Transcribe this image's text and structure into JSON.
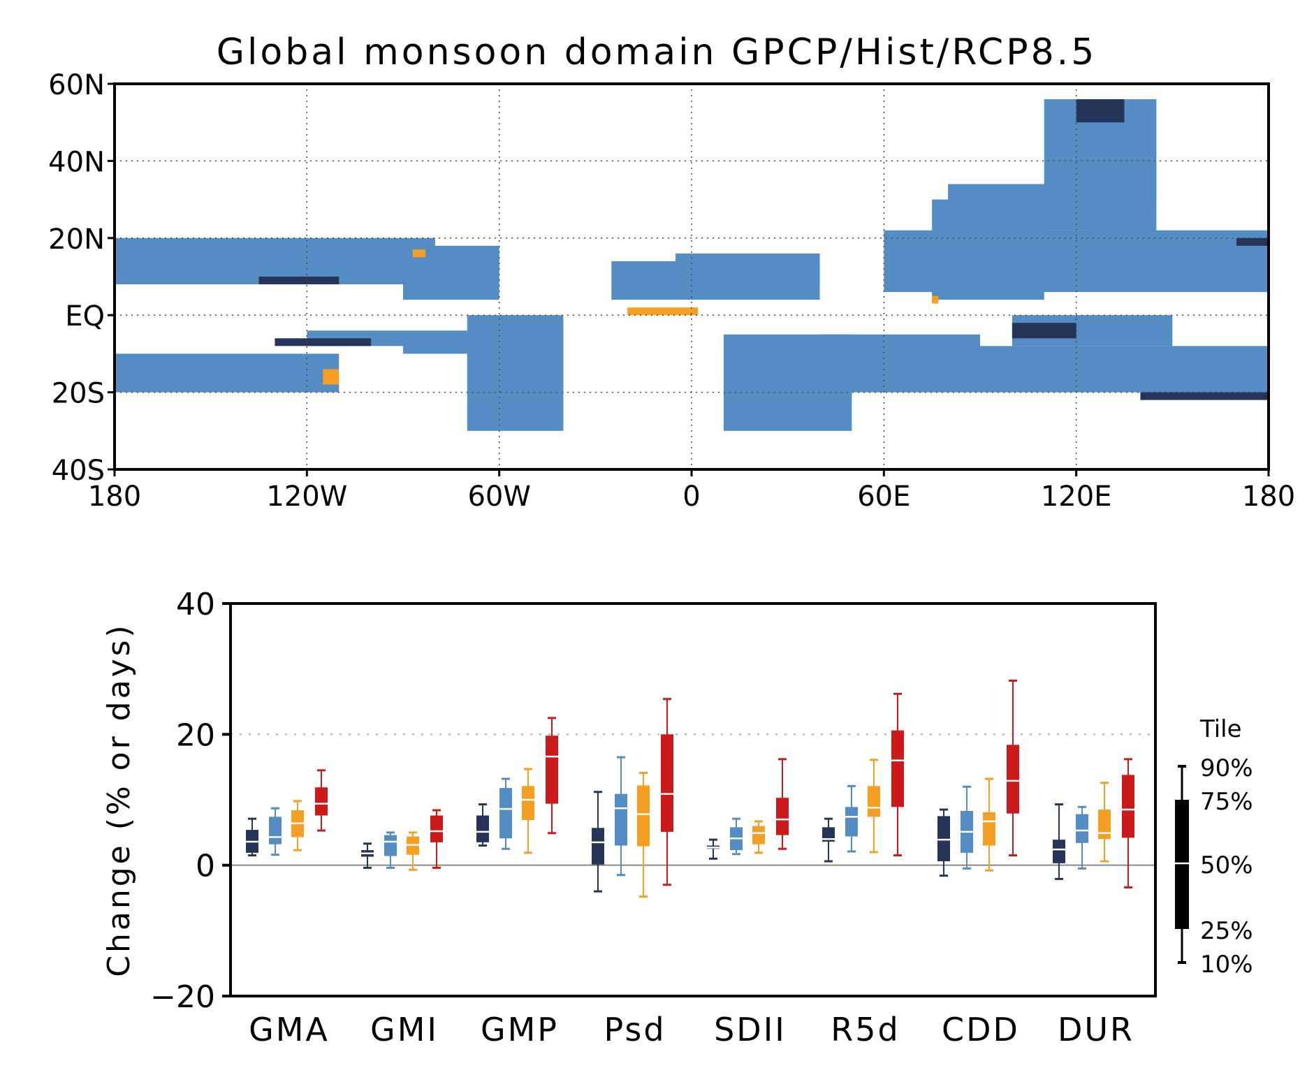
{
  "colors": {
    "navy": "#263459",
    "blue": "#548dc4",
    "orange": "#f5a024",
    "red": "#cc1a1a",
    "land": "#b0b0b0"
  },
  "chart_data": [
    {
      "type": "map",
      "title": "Global monsoon domain GPCP/Hist/RCP8.5",
      "xlim": [
        -180,
        180
      ],
      "ylim": [
        -40,
        60
      ],
      "xticks": [
        {
          "v": -180,
          "label": "180"
        },
        {
          "v": -120,
          "label": "120W"
        },
        {
          "v": -60,
          "label": "60W"
        },
        {
          "v": 0,
          "label": "0"
        },
        {
          "v": 60,
          "label": "60E"
        },
        {
          "v": 120,
          "label": "120E"
        },
        {
          "v": 180,
          "label": "180"
        }
      ],
      "yticks": [
        {
          "v": 60,
          "label": "60N"
        },
        {
          "v": 40,
          "label": "40N"
        },
        {
          "v": 20,
          "label": "20N"
        },
        {
          "v": 0,
          "label": "EQ"
        },
        {
          "v": -20,
          "label": "20S"
        },
        {
          "v": -40,
          "label": "40S"
        }
      ],
      "grid": "dotted",
      "regions_blue": [
        [
          -180,
          8,
          -80,
          20
        ],
        [
          -140,
          10,
          -60,
          16
        ],
        [
          -90,
          4,
          -60,
          18
        ],
        [
          -25,
          4,
          40,
          14
        ],
        [
          -5,
          8,
          40,
          16
        ],
        [
          60,
          6,
          180,
          22
        ],
        [
          75,
          4,
          110,
          30
        ],
        [
          80,
          22,
          130,
          34
        ],
        [
          110,
          30,
          145,
          56
        ],
        [
          125,
          20,
          145,
          40
        ],
        [
          -180,
          -20,
          -110,
          -10
        ],
        [
          -70,
          -30,
          -40,
          0
        ],
        [
          -90,
          -10,
          -40,
          -5
        ],
        [
          -120,
          -8,
          -70,
          -4
        ],
        [
          10,
          -30,
          50,
          -5
        ],
        [
          40,
          -20,
          90,
          -5
        ],
        [
          90,
          -20,
          180,
          -8
        ],
        [
          100,
          -8,
          150,
          0
        ]
      ],
      "regions_navy": [
        [
          -135,
          8,
          -110,
          10
        ],
        [
          -130,
          -8,
          -100,
          -6
        ],
        [
          100,
          -6,
          120,
          -2
        ],
        [
          120,
          50,
          135,
          56
        ],
        [
          170,
          18,
          180,
          20
        ],
        [
          140,
          -22,
          180,
          -20
        ]
      ],
      "regions_orange": [
        [
          -20,
          0,
          2,
          2
        ],
        [
          -115,
          -18,
          -110,
          -14
        ],
        [
          -87,
          15,
          -83,
          17
        ],
        [
          75,
          3,
          77,
          5
        ]
      ]
    },
    {
      "type": "box",
      "ylabel": "Change (% or days)",
      "ylim": [
        -20,
        40
      ],
      "yticks": [
        -20,
        0,
        20,
        40
      ],
      "ytick_labels": [
        "−20",
        "0",
        "20",
        "40"
      ],
      "categories": [
        "GMA",
        "GMI",
        "GMP",
        "Psd",
        "SDII",
        "R5d",
        "CDD",
        "DUR"
      ],
      "series_colors": [
        "#263459",
        "#548dc4",
        "#f5a024",
        "#cc1a1a"
      ],
      "boxes": [
        [
          [
            1.5,
            1.9,
            3.6,
            5.4,
            7.1
          ],
          [
            1.6,
            3.2,
            4.3,
            7.4,
            8.7
          ],
          [
            2.3,
            4.3,
            6.4,
            8.4,
            9.8
          ],
          [
            5.3,
            7.6,
            9.4,
            11.9,
            14.5
          ]
        ],
        [
          [
            -0.4,
            1.3,
            1.8,
            2.3,
            3.3
          ],
          [
            -0.4,
            1.4,
            3.6,
            4.6,
            5.0
          ],
          [
            -0.7,
            1.6,
            3.1,
            4.4,
            5.0
          ],
          [
            -0.4,
            3.5,
            5.2,
            7.6,
            8.4
          ]
        ],
        [
          [
            3.0,
            3.5,
            5.1,
            7.6,
            9.3
          ],
          [
            2.5,
            4.1,
            8.6,
            11.8,
            13.2
          ],
          [
            1.9,
            6.9,
            10.0,
            12.1,
            14.7
          ],
          [
            4.9,
            9.4,
            16.6,
            19.8,
            22.5
          ]
        ],
        [
          [
            -4.0,
            0.1,
            3.5,
            5.7,
            11.2
          ],
          [
            -1.5,
            3.0,
            8.7,
            10.9,
            16.5
          ],
          [
            -4.8,
            2.9,
            7.8,
            12.2,
            14.1
          ],
          [
            -3.0,
            5.1,
            10.9,
            20.0,
            25.4
          ]
        ],
        [
          [
            1.0,
            2.5,
            2.7,
            3.0,
            3.9
          ],
          [
            1.7,
            2.3,
            4.1,
            5.8,
            7.1
          ],
          [
            1.9,
            3.2,
            4.9,
            6.0,
            6.7
          ],
          [
            2.5,
            4.6,
            7.0,
            10.3,
            16.2
          ]
        ],
        [
          [
            0.6,
            3.6,
            4.0,
            5.8,
            7.1
          ],
          [
            2.1,
            4.4,
            7.4,
            8.9,
            12.1
          ],
          [
            2.0,
            7.4,
            8.8,
            12.1,
            16.1
          ],
          [
            1.5,
            8.9,
            16.0,
            20.6,
            26.2
          ]
        ],
        [
          [
            -1.6,
            0.6,
            3.9,
            7.5,
            8.5
          ],
          [
            -0.5,
            1.9,
            5.1,
            8.3,
            12.0
          ],
          [
            -0.8,
            3.0,
            6.7,
            8.1,
            13.2
          ],
          [
            1.5,
            7.9,
            12.9,
            18.4,
            28.2
          ]
        ],
        [
          [
            -2.1,
            0.3,
            2.4,
            3.9,
            9.3
          ],
          [
            -0.5,
            3.4,
            5.3,
            7.8,
            8.9
          ],
          [
            0.6,
            4.0,
            4.9,
            8.5,
            12.6
          ],
          [
            -3.4,
            4.2,
            8.5,
            13.8,
            16.2
          ]
        ]
      ],
      "legend": {
        "title": "Tile",
        "labels": [
          "90%",
          "75%",
          "50%",
          "25%",
          "10%"
        ]
      }
    }
  ]
}
